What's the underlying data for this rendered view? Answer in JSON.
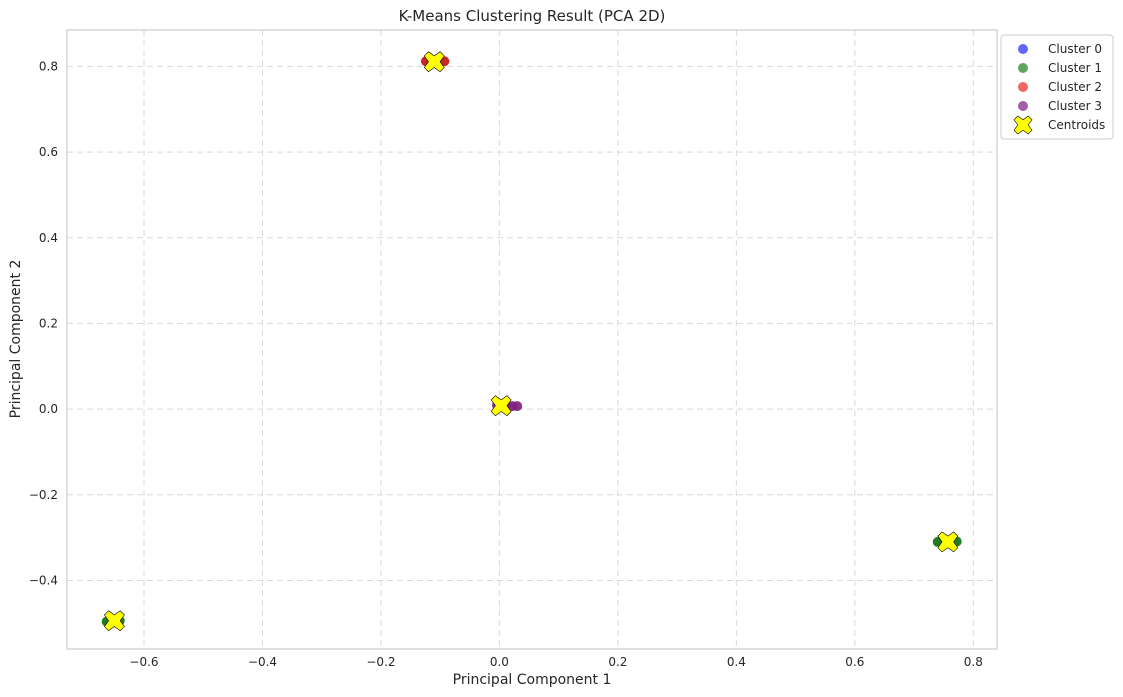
{
  "chart_data": {
    "type": "scatter",
    "title": "K-Means Clustering Result (PCA 2D)",
    "xlabel": "Principal Component 1",
    "ylabel": "Principal Component 2",
    "xlim": [
      -0.73,
      0.84
    ],
    "ylim": [
      -0.56,
      0.885
    ],
    "x_ticks": [
      -0.6,
      -0.4,
      -0.2,
      0.0,
      0.2,
      0.4,
      0.6,
      0.8
    ],
    "x_tick_labels": [
      "−0.6",
      "−0.4",
      "−0.2",
      "0.0",
      "0.2",
      "0.4",
      "0.6",
      "0.8"
    ],
    "y_ticks": [
      -0.4,
      -0.2,
      0.0,
      0.2,
      0.4,
      0.6,
      0.8
    ],
    "y_tick_labels": [
      "−0.4",
      "−0.2",
      "0.0",
      "0.2",
      "0.4",
      "0.6",
      "0.8"
    ],
    "grid": true,
    "legend_position": "outside-top-right",
    "series": [
      {
        "name": "Cluster 0",
        "color": "#5a5aff",
        "points": [
          [
            -0.65,
            -0.495
          ],
          [
            -0.652,
            -0.492
          ]
        ]
      },
      {
        "name": "Cluster 1",
        "color": "#0a6e0a",
        "points": [
          [
            0.755,
            -0.31
          ],
          [
            0.772,
            -0.309
          ],
          [
            0.74,
            -0.31
          ],
          [
            -0.663,
            -0.496
          ],
          [
            -0.641,
            -0.494
          ]
        ]
      },
      {
        "name": "Cluster 2",
        "color": "#c01010",
        "points": [
          [
            -0.11,
            0.81
          ],
          [
            -0.093,
            0.812
          ],
          [
            -0.124,
            0.812
          ]
        ]
      },
      {
        "name": "Cluster 3",
        "color": "#7d1f7d",
        "points": [
          [
            0.0,
            0.008
          ],
          [
            0.012,
            0.008
          ],
          [
            0.022,
            0.007
          ],
          [
            0.03,
            0.007
          ],
          [
            -0.004,
            0.009
          ]
        ]
      }
    ],
    "legend_colors": [
      "#6464ff",
      "#5fa55f",
      "#f06464",
      "#a060a8"
    ],
    "centroids": {
      "name": "Centroids",
      "color": "#ffff00",
      "points": [
        [
          0.003,
          0.008
        ],
        [
          -0.11,
          0.811
        ],
        [
          0.757,
          -0.31
        ],
        [
          -0.65,
          -0.494
        ]
      ]
    }
  }
}
